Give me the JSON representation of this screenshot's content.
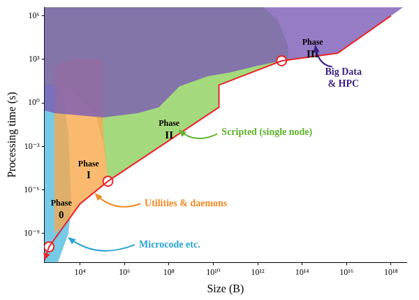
{
  "chart_data": {
    "type": "area",
    "x_label": "Size (B)",
    "y_label": "Processing time (s)",
    "log": true,
    "grid": false,
    "xlim": [
      250,
      5e+18
    ],
    "xticks": [
      {
        "value": 10000.0,
        "label": "10⁴"
      },
      {
        "value": 1000000.0,
        "label": "10⁶"
      },
      {
        "value": 100000000.0,
        "label": "10⁸"
      },
      {
        "value": 10000000000.0,
        "label": "10¹⁰"
      },
      {
        "value": 1000000000000.0,
        "label": "10¹²"
      },
      {
        "value": 100000000000000.0,
        "label": "10¹⁴"
      },
      {
        "value": 1e+16,
        "label": "10¹⁶"
      },
      {
        "value": 1e+18,
        "label": "10¹⁸"
      }
    ],
    "ylim": [
      1e-11,
      4000000.0
    ],
    "yticks": [
      {
        "value": 1e-09,
        "label": "10⁻⁹"
      },
      {
        "value": 1e-06,
        "label": "10⁻⁶"
      },
      {
        "value": 0.001,
        "label": "10⁻³"
      },
      {
        "value": 1,
        "label": "10⁰"
      },
      {
        "value": 1000.0,
        "label": "10³"
      },
      {
        "value": 1000000.0,
        "label": "10⁶"
      }
    ],
    "series": [
      {
        "name": "Scripted (single node)",
        "type": "area",
        "color": "#8fd05c",
        "x": [
          250,
          250,
          1900000000000.0,
          8000000000000.0,
          23000000000000.0,
          23000000000000.0,
          12000000000000.0,
          18000000000.0,
          18000000000.0,
          180000.0,
          110000.0,
          50000.0,
          3000.0,
          250
        ],
        "values": [
          14,
          4000000.0,
          4000000.0,
          500000.0,
          10000.0,
          1100.0,
          800,
          17,
          0.5,
          4e-06,
          0.002,
          0.17,
          14,
          14
        ]
      },
      {
        "name": "Microcode etc.",
        "type": "area",
        "color": "#55bde0",
        "x": [
          250,
          250,
          400,
          1500,
          3000,
          4000,
          3000,
          1000
        ],
        "values": [
          1e-11,
          14,
          20,
          10,
          0.01,
          1e-07,
          1e-09,
          1e-11
        ]
      },
      {
        "name": "Utilities & daemons",
        "type": "area",
        "color": "#f7a94c",
        "x": [
          700,
          3000,
          100000.0,
          110000.0,
          150000.0,
          180000.0,
          10000.0,
          2300,
          700
        ],
        "values": [
          300,
          1000,
          1000,
          0.01,
          0.0001,
          4e-06,
          1.1e-07,
          5e-09,
          1e-09
        ]
      },
      {
        "name": "Big Data & HPC",
        "type": "area",
        "color": "#7a5bb5",
        "x": [
          250,
          700,
          110000.0,
          4000000.0,
          35000000.0,
          300000000.0,
          5600000000.0,
          50000000000.0,
          1000000000000.0,
          12000000000000.0,
          4000000000000000.0,
          1e+18,
          3.6e+18,
          250
        ],
        "values": [
          0.3,
          0.2,
          0.1,
          0.2,
          0.5,
          14,
          70,
          120,
          370,
          800,
          2700,
          1000000.0,
          4000000.0,
          4000000.0
        ]
      },
      {
        "type": "line",
        "color": "#e8252a",
        "line_style": "solid",
        "x": [
          250,
          400,
          2300,
          10000.0,
          180000.0,
          18000000000.0,
          18000000000.0,
          12000000000000.0,
          4000000000000000.0,
          1e+18
        ],
        "values": [
          1.5e-11,
          1.2e-10,
          5e-09,
          1.1e-07,
          4e-06,
          0.5,
          17,
          800,
          2700,
          1000000.0
        ]
      },
      {
        "type": "scatter",
        "color": "#e8252a",
        "marker": "circle",
        "x": [
          400,
          180000.0,
          12000000000000.0
        ],
        "values": [
          1.2e-10,
          4e-06,
          800
        ]
      }
    ],
    "annotations": [
      "Phase 0",
      "Phase I",
      "Phase II",
      "Phase III"
    ]
  }
}
